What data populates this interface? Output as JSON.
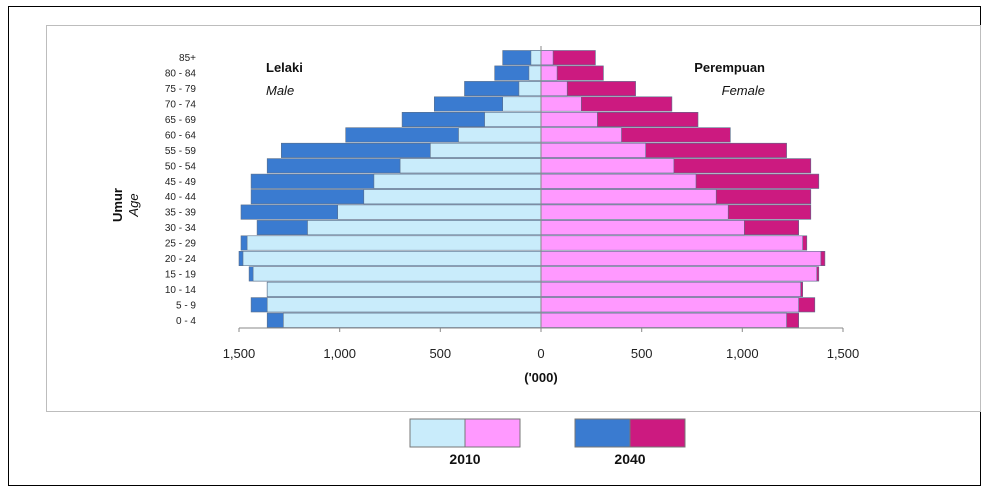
{
  "chart_data": {
    "type": "bar",
    "orientation": "horizontal",
    "chart_kind": "population-pyramid",
    "categories": [
      "0 - 4",
      "5 - 9",
      "10 - 14",
      "15 - 19",
      "20 - 24",
      "25 - 29",
      "30 - 34",
      "35 - 39",
      "40 - 44",
      "45 - 49",
      "50 - 54",
      "55 - 59",
      "60 - 64",
      "65 - 69",
      "70 - 74",
      "75 - 79",
      "80 - 84",
      "85+"
    ],
    "series": [
      {
        "name": "2010",
        "side": "male",
        "color": "#c9ecfb",
        "values": [
          1280,
          1360,
          1360,
          1430,
          1480,
          1460,
          1160,
          1010,
          880,
          830,
          700,
          550,
          410,
          280,
          190,
          110,
          60,
          50
        ]
      },
      {
        "name": "2010",
        "side": "female",
        "color": "#ff99ff",
        "values": [
          1220,
          1280,
          1290,
          1370,
          1390,
          1300,
          1010,
          930,
          870,
          770,
          660,
          520,
          400,
          280,
          200,
          130,
          80,
          60
        ]
      },
      {
        "name": "2040",
        "side": "male",
        "color": "#3a7bd0",
        "values": [
          1360,
          1440,
          1360,
          1450,
          1500,
          1490,
          1410,
          1490,
          1440,
          1440,
          1360,
          1290,
          970,
          690,
          530,
          380,
          230,
          190
        ]
      },
      {
        "name": "2040",
        "side": "female",
        "color": "#cc1a80",
        "values": [
          1280,
          1360,
          1300,
          1380,
          1410,
          1320,
          1280,
          1340,
          1340,
          1380,
          1340,
          1220,
          940,
          780,
          650,
          470,
          310,
          270
        ]
      }
    ],
    "xlim": [
      -1500,
      1500
    ],
    "x_ticks": [
      -1500,
      -1000,
      -500,
      0,
      500,
      1000,
      1500
    ],
    "x_tick_labels": [
      "1,500",
      "1,000",
      "500",
      "0",
      "500",
      "1,000",
      "1,500"
    ],
    "xlabel": "('000)",
    "ylabel": "Umur",
    "ylabel_sub": "Age",
    "left_title": "Lelaki",
    "left_subtitle": "Male",
    "right_title": "Perempuan",
    "right_subtitle": "Female",
    "legend": [
      {
        "label": "2010",
        "colors": [
          "#c9ecfb",
          "#ff99ff"
        ]
      },
      {
        "label": "2040",
        "colors": [
          "#3a7bd0",
          "#cc1a80"
        ]
      }
    ],
    "legend_position": "bottom",
    "grid": false
  }
}
